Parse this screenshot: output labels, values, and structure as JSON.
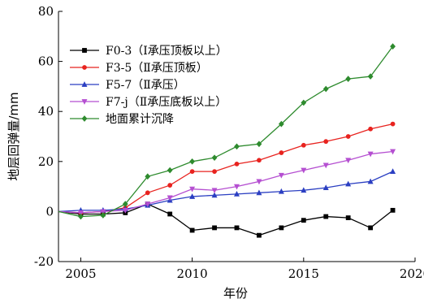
{
  "chart_data": {
    "type": "line",
    "title": "",
    "xlabel": "年份",
    "ylabel": "地层回弹量/mm",
    "xlim": [
      2004,
      2020
    ],
    "ylim": [
      -20,
      80
    ],
    "x_ticks": [
      2005,
      2010,
      2015,
      2020
    ],
    "y_ticks": [
      -20,
      0,
      20,
      40,
      60,
      80
    ],
    "grid": false,
    "legend_position": "top-left",
    "x": [
      2004,
      2005,
      2006,
      2007,
      2008,
      2009,
      2010,
      2011,
      2012,
      2013,
      2014,
      2015,
      2016,
      2017,
      2018,
      2019
    ],
    "series": [
      {
        "name": "F0-3（Ⅰ承压顶板以上）",
        "color": "#000000",
        "marker": "square",
        "values": [
          0,
          -1,
          -1,
          -0.5,
          3,
          -1,
          -7.5,
          -6.5,
          -6.5,
          -9.5,
          -6.5,
          -3.5,
          -2,
          -2.5,
          -6.5,
          0.5
        ]
      },
      {
        "name": "F3-5（Ⅱ承压顶板）",
        "color": "#e8231f",
        "marker": "circle",
        "values": [
          0,
          -0.5,
          0,
          1.5,
          7.5,
          10.5,
          16,
          16,
          19,
          20.5,
          23.5,
          26.5,
          28,
          30,
          33,
          35
        ]
      },
      {
        "name": "F5-7（Ⅱ承压）",
        "color": "#2b3fc2",
        "marker": "triangle",
        "values": [
          0,
          0.5,
          0.5,
          1,
          2.5,
          4.5,
          6,
          6.5,
          7,
          7.5,
          8,
          8.5,
          9.5,
          11,
          12,
          16
        ]
      },
      {
        "name": "F7-j（Ⅱ承压底板以上）",
        "color": "#b54fd1",
        "marker": "triangle-down",
        "values": [
          0,
          -0.5,
          0,
          0.5,
          3,
          5.5,
          9,
          8.5,
          10,
          12,
          14.5,
          16.5,
          18.5,
          20.5,
          23,
          24
        ]
      },
      {
        "name": "地面累计沉降",
        "color": "#2e8b2e",
        "marker": "diamond",
        "values": [
          0,
          -2,
          -1.5,
          3,
          14,
          16.5,
          20,
          21.5,
          26,
          27,
          35,
          43.5,
          49,
          53,
          54,
          66
        ]
      }
    ]
  }
}
